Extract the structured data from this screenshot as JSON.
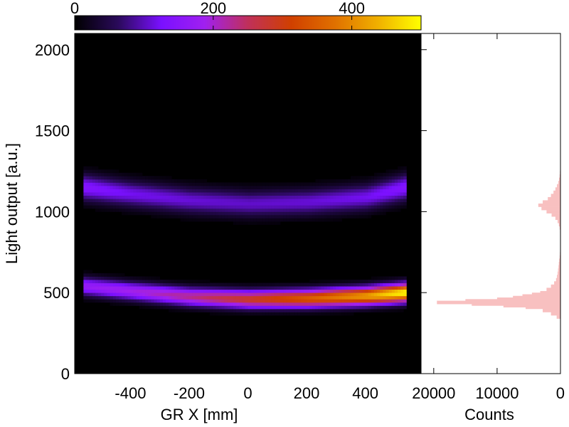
{
  "chart_data": [
    {
      "type": "heatmap",
      "title": "",
      "xlabel": "GR X [mm]",
      "ylabel": "Light output [a.u.]",
      "xlim": [
        -590,
        590
      ],
      "ylim": [
        0,
        2100
      ],
      "xticks": [
        "-400",
        "-200",
        "0",
        "200",
        "400"
      ],
      "xtick_values": [
        -400,
        -200,
        0,
        200,
        400
      ],
      "yticks": [
        "0",
        "500",
        "1000",
        "1500",
        "2000"
      ],
      "ytick_values": [
        0,
        500,
        1000,
        1500,
        2000
      ],
      "colorbar": {
        "range": [
          0,
          500
        ],
        "ticks": [
          "0",
          "200",
          "400"
        ],
        "tick_values": [
          0,
          200,
          400
        ],
        "colors": [
          "#000000",
          "#2a0a5a",
          "#7a10ff",
          "#a020f0",
          "#c0305a",
          "#d04000",
          "#e07000",
          "#f0b000",
          "#ffff00"
        ]
      },
      "bands": [
        {
          "x": [
            -560,
            -400,
            -200,
            0,
            200,
            400,
            530
          ],
          "center": [
            1150,
            1110,
            1070,
            1050,
            1060,
            1090,
            1150
          ],
          "peak_counts": [
            140,
            120,
            110,
            105,
            110,
            120,
            140
          ]
        },
        {
          "x": [
            -560,
            -400,
            -200,
            0,
            200,
            400,
            530
          ],
          "center": [
            540,
            510,
            475,
            460,
            465,
            480,
            500
          ],
          "peak_counts": [
            170,
            190,
            230,
            290,
            350,
            420,
            500
          ]
        }
      ],
      "grid": false,
      "background": "#000000"
    },
    {
      "type": "bar",
      "orientation": "horizontal",
      "xlabel": "Counts",
      "xlim": [
        22000,
        0
      ],
      "xticks": [
        "20000",
        "10000",
        "0"
      ],
      "xtick_values": [
        20000,
        10000,
        0
      ],
      "ylim": [
        0,
        2100
      ],
      "bin_width": 20,
      "bins": [
        [
          330,
          0
        ],
        [
          350,
          600
        ],
        [
          370,
          1500
        ],
        [
          390,
          2800
        ],
        [
          410,
          5500
        ],
        [
          420,
          9000
        ],
        [
          430,
          14000
        ],
        [
          440,
          19500
        ],
        [
          450,
          15000
        ],
        [
          460,
          10000
        ],
        [
          470,
          7500
        ],
        [
          480,
          6000
        ],
        [
          490,
          4500
        ],
        [
          500,
          3200
        ],
        [
          520,
          2200
        ],
        [
          540,
          1500
        ],
        [
          560,
          1000
        ],
        [
          580,
          700
        ],
        [
          600,
          550
        ],
        [
          620,
          450
        ],
        [
          640,
          380
        ],
        [
          660,
          320
        ],
        [
          680,
          260
        ],
        [
          700,
          200
        ],
        [
          720,
          120
        ],
        [
          740,
          80
        ],
        [
          760,
          50
        ],
        [
          780,
          30
        ],
        [
          800,
          20
        ],
        [
          820,
          15
        ],
        [
          840,
          20
        ],
        [
          860,
          30
        ],
        [
          880,
          60
        ],
        [
          900,
          120
        ],
        [
          920,
          250
        ],
        [
          940,
          450
        ],
        [
          960,
          800
        ],
        [
          980,
          1400
        ],
        [
          1000,
          2200
        ],
        [
          1020,
          3000
        ],
        [
          1040,
          3500
        ],
        [
          1060,
          2800
        ],
        [
          1080,
          2000
        ],
        [
          1100,
          1500
        ],
        [
          1120,
          1100
        ],
        [
          1140,
          800
        ],
        [
          1160,
          550
        ],
        [
          1180,
          350
        ],
        [
          1200,
          220
        ],
        [
          1220,
          130
        ],
        [
          1240,
          80
        ],
        [
          1260,
          50
        ],
        [
          1280,
          30
        ],
        [
          1300,
          15
        ],
        [
          1320,
          0
        ]
      ],
      "fill_color": "#f8c0c0"
    }
  ]
}
